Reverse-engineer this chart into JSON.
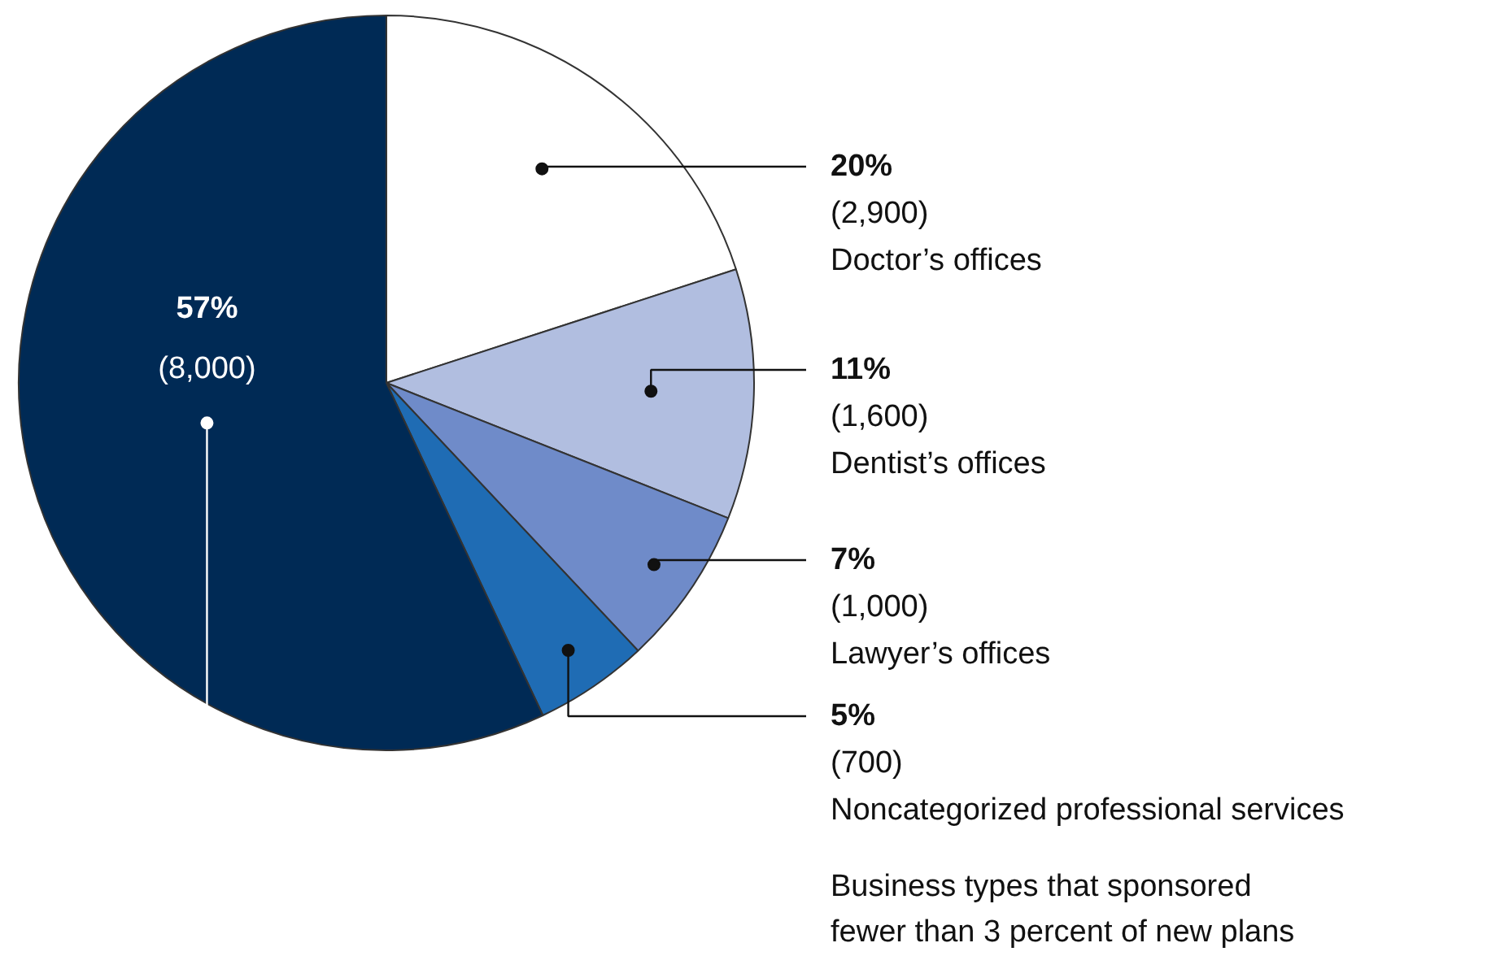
{
  "chart_data": {
    "type": "pie",
    "categories": [
      "Doctor’s offices",
      "Dentist’s offices",
      "Lawyer’s offices",
      "Noncategorized professional services",
      "Business types that sponsored\nfewer than 3 percent of new plans"
    ],
    "values": [
      20,
      11,
      7,
      5,
      57
    ],
    "colors": [
      "#ffffff",
      "#b1bee0",
      "#6f8bc9",
      "#1f6cb4",
      "#002a55"
    ],
    "value_labels": [
      "20%\n(2,900)",
      "11%\n(1,600)",
      "7%\n(1,000)",
      "5%\n(700)",
      "57%\n(8,000)"
    ]
  }
}
